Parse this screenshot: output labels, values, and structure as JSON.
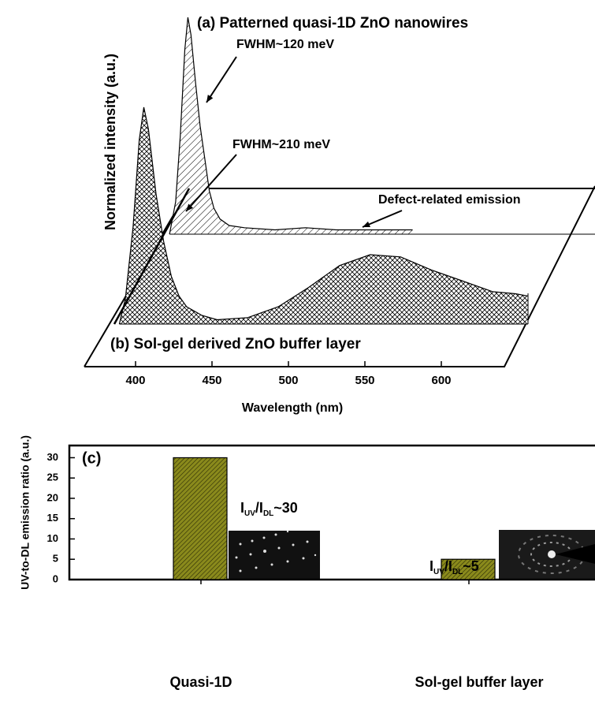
{
  "chart_data": [
    {
      "type": "area",
      "x_label": "Wavelength (nm)",
      "y_label": "Normalized intensity (a.u.)",
      "xticks": [
        400,
        450,
        500,
        550,
        600
      ],
      "series": [
        {
          "name": "(a) Patterned quasi-1D ZnO nanowires",
          "color": "#000000",
          "x": [
            381,
            385,
            388,
            391,
            393,
            395,
            398,
            401,
            404,
            407,
            410,
            414,
            420,
            430,
            450,
            470,
            490,
            510,
            530,
            540
          ],
          "values": [
            0,
            0.15,
            0.45,
            0.85,
            1.0,
            0.92,
            0.7,
            0.5,
            0.35,
            0.2,
            0.12,
            0.07,
            0.04,
            0.03,
            0.02,
            0.03,
            0.02,
            0.02,
            0.02,
            0.02
          ]
        },
        {
          "name": "(b) Sol-gel derived ZnO buffer layer",
          "color": "#000000",
          "x": [
            376,
            380,
            385,
            389,
            392,
            395,
            400,
            405,
            410,
            415,
            420,
            430,
            440,
            460,
            480,
            500,
            520,
            540,
            560,
            580,
            600,
            620,
            635,
            643
          ],
          "values": [
            0,
            0.12,
            0.45,
            0.85,
            1.0,
            0.9,
            0.6,
            0.38,
            0.22,
            0.13,
            0.08,
            0.04,
            0.02,
            0.03,
            0.08,
            0.17,
            0.27,
            0.32,
            0.31,
            0.25,
            0.2,
            0.15,
            0.14,
            0.13
          ]
        }
      ],
      "annotations": [
        "FWHM~120 meV",
        "FWHM~210 meV",
        "Defect-related emission"
      ]
    },
    {
      "type": "bar",
      "y_label": "UV-to-DL emission ratio (a.u.)",
      "categories": [
        "Quasi-1D",
        "Sol-gel buffer layer"
      ],
      "values": [
        30,
        5
      ],
      "color": "#8a8a1c",
      "ylim": [
        0,
        33
      ],
      "yticks": [
        0,
        5,
        10,
        15,
        20,
        25,
        30
      ],
      "panel_label": "(c)",
      "annotations": [
        [
          "I",
          "UV",
          "/I",
          "DL",
          "~30"
        ],
        [
          "I",
          "UV",
          "/I",
          "DL",
          "~5"
        ]
      ]
    }
  ]
}
